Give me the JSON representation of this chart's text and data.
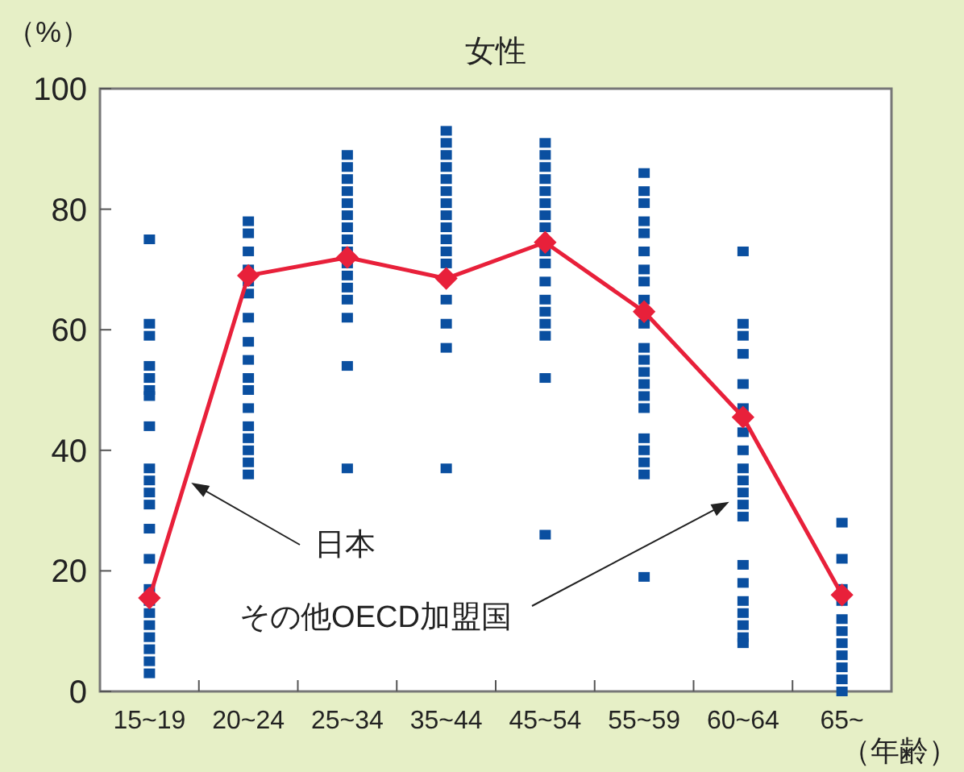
{
  "chart_data": {
    "type": "line",
    "title": "女性",
    "ylabel": "（%）",
    "xlabel": "（年齢）",
    "categories": [
      "15~19",
      "20~24",
      "25~34",
      "35~44",
      "45~54",
      "55~59",
      "60~64",
      "65~"
    ],
    "ylim": [
      0,
      100
    ],
    "yticks": [
      0,
      20,
      40,
      60,
      80,
      100
    ],
    "grid": false,
    "series": [
      {
        "type": "scatter",
        "color": "#0a4fa0",
        "marker": "square",
        "x": [
          "15~19",
          "15~19",
          "15~19",
          "15~19",
          "15~19",
          "15~19",
          "15~19",
          "15~19",
          "15~19",
          "15~19",
          "15~19",
          "15~19",
          "15~19",
          "15~19",
          "15~19",
          "15~19",
          "15~19",
          "15~19",
          "15~19",
          "15~19",
          "15~19",
          "15~19",
          "20~24",
          "20~24",
          "20~24",
          "20~24",
          "20~24",
          "20~24",
          "20~24",
          "20~24",
          "20~24",
          "20~24",
          "20~24",
          "20~24",
          "20~24",
          "20~24",
          "20~24",
          "20~24",
          "20~24",
          "25~34",
          "25~34",
          "25~34",
          "25~34",
          "25~34",
          "25~34",
          "25~34",
          "25~34",
          "25~34",
          "25~34",
          "25~34",
          "25~34",
          "25~34",
          "25~34",
          "25~34",
          "25~34",
          "35~44",
          "35~44",
          "35~44",
          "35~44",
          "35~44",
          "35~44",
          "35~44",
          "35~44",
          "35~44",
          "35~44",
          "35~44",
          "35~44",
          "35~44",
          "35~44",
          "35~44",
          "35~44",
          "45~54",
          "45~54",
          "45~54",
          "45~54",
          "45~54",
          "45~54",
          "45~54",
          "45~54",
          "45~54",
          "45~54",
          "45~54",
          "45~54",
          "45~54",
          "45~54",
          "45~54",
          "45~54",
          "45~54",
          "45~54",
          "55~59",
          "55~59",
          "55~59",
          "55~59",
          "55~59",
          "55~59",
          "55~59",
          "55~59",
          "55~59",
          "55~59",
          "55~59",
          "55~59",
          "55~59",
          "55~59",
          "55~59",
          "55~59",
          "55~59",
          "55~59",
          "55~59",
          "55~59",
          "55~59",
          "55~59",
          "60~64",
          "60~64",
          "60~64",
          "60~64",
          "60~64",
          "60~64",
          "60~64",
          "60~64",
          "60~64",
          "60~64",
          "60~64",
          "60~64",
          "60~64",
          "60~64",
          "60~64",
          "60~64",
          "60~64",
          "60~64",
          "60~64",
          "60~64",
          "60~64",
          "65~",
          "65~",
          "65~",
          "65~",
          "65~",
          "65~",
          "65~",
          "65~",
          "65~",
          "65~",
          "65~"
        ],
        "values": [
          75,
          61,
          59,
          54,
          52,
          50,
          49,
          44,
          37,
          35,
          33,
          31,
          27,
          22,
          17,
          15,
          13,
          11,
          9,
          7,
          5,
          3,
          78,
          76,
          73,
          70,
          68,
          66,
          62,
          58,
          55,
          52,
          50,
          47,
          44,
          42,
          40,
          38,
          36,
          89,
          87,
          85,
          83,
          81,
          79,
          77,
          75,
          73,
          71,
          69,
          67,
          65,
          62,
          54,
          37,
          93,
          91,
          89,
          87,
          85,
          83,
          81,
          79,
          77,
          75,
          73,
          71,
          65,
          61,
          57,
          37,
          91,
          89,
          87,
          85,
          83,
          81,
          79,
          77,
          null,
          73,
          71,
          68,
          65,
          63,
          61,
          59,
          52,
          26,
          86,
          83,
          81,
          78,
          76,
          73,
          70,
          68,
          65,
          null,
          61,
          57,
          55,
          53,
          51,
          49,
          47,
          42,
          40,
          38,
          36,
          19,
          73,
          61,
          59,
          56,
          51,
          47,
          null,
          43,
          40,
          37,
          35,
          33,
          31,
          29,
          21,
          18,
          15,
          13,
          11,
          9,
          8,
          28,
          22,
          17,
          15,
          12,
          10,
          8,
          6,
          4,
          2,
          0
        ]
      },
      {
        "type": "line",
        "color": "#e8203a",
        "marker": "diamond",
        "line_style": "solid",
        "values": [
          15.5,
          69,
          72,
          68.5,
          74.5,
          63,
          45.5,
          16
        ]
      }
    ],
    "annotations": [
      "日本",
      "その他OECD加盟国"
    ]
  }
}
